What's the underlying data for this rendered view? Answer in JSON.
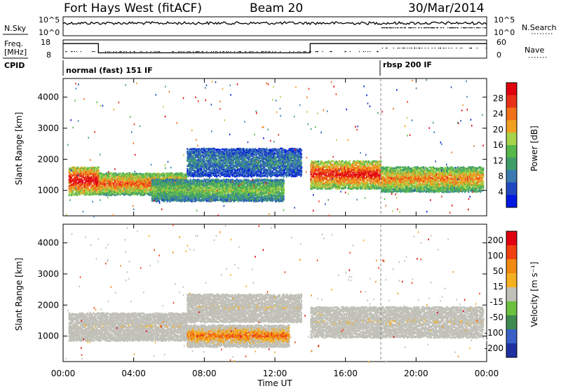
{
  "header": {
    "title": "Fort Hays West (fitACF)",
    "beam": "Beam 20",
    "date": "30/Mar/2014"
  },
  "top_panels": {
    "nsky_label": "N.Sky",
    "nsearch_label": "N.Search",
    "nsky_ticks": [
      "10^5",
      "10^0"
    ],
    "nsearch_ticks": [
      "10^5",
      "10^0"
    ],
    "freq_label_1": "Freq.",
    "freq_label_2": "[MHz]",
    "freq_ticks": [
      "18",
      "8"
    ],
    "nave_label": "Nave",
    "nave_ticks": [
      "60",
      "0"
    ],
    "cpid_label": "CPID",
    "cpid_segments": [
      {
        "label": "normal (fast) 151 IF",
        "start_hour": 0,
        "end_hour": 18
      },
      {
        "label": "rbsp 200 IF",
        "start_hour": 18,
        "end_hour": 24
      }
    ],
    "freq_segments": [
      {
        "start_hour": 0,
        "end_hour": 2,
        "mhz": 17
      },
      {
        "start_hour": 2,
        "end_hour": 14,
        "mhz": 11
      },
      {
        "start_hour": 14,
        "end_hour": 24,
        "mhz": 17
      }
    ]
  },
  "chart_data": [
    {
      "type": "heatmap",
      "name": "power",
      "ylabel": "Slant Range [km]",
      "ylim": [
        180,
        4600
      ],
      "yticks": [
        1000,
        2000,
        3000,
        4000
      ],
      "xlim": [
        0,
        24
      ],
      "colorbar_label": "Power [dB]",
      "colorbar_ticks": [
        "4",
        "8",
        "12",
        "16",
        "20",
        "24",
        "28"
      ],
      "colorbar_colors": [
        "#0018e0",
        "#2048c0",
        "#3a7ab0",
        "#3f9d6a",
        "#56b84a",
        "#a8d24a",
        "#f0a020",
        "#f07018",
        "#e83018",
        "#e00010"
      ],
      "bands": [
        {
          "start_hour": 0.3,
          "end_hour": 2.0,
          "low_km": 900,
          "high_km": 1800,
          "level": 0.85
        },
        {
          "start_hour": 2.0,
          "end_hour": 7.0,
          "low_km": 900,
          "high_km": 1600,
          "level": 0.7
        },
        {
          "start_hour": 5.0,
          "end_hour": 12.5,
          "low_km": 700,
          "high_km": 1400,
          "level": 0.45
        },
        {
          "start_hour": 7.0,
          "end_hour": 13.5,
          "low_km": 1500,
          "high_km": 2400,
          "level": 0.25
        },
        {
          "start_hour": 14.0,
          "end_hour": 18.0,
          "low_km": 1100,
          "high_km": 2000,
          "level": 0.8
        },
        {
          "start_hour": 18.0,
          "end_hour": 23.8,
          "low_km": 1000,
          "high_km": 1800,
          "level": 0.65
        }
      ]
    },
    {
      "type": "heatmap",
      "name": "velocity",
      "ylabel": "Slant Range [km]",
      "ylim": [
        180,
        4600
      ],
      "yticks": [
        1000,
        2000,
        3000,
        4000
      ],
      "xlim": [
        0,
        24
      ],
      "xticks": [
        "00:00",
        "04:00",
        "08:00",
        "12:00",
        "16:00",
        "20:00",
        "00:00"
      ],
      "xlabel": "Time UT",
      "colorbar_label": "Velocity [m s⁻¹]",
      "colorbar_ticks": [
        "200",
        "100",
        "50",
        "15",
        "-15",
        "-50",
        "-100",
        "-200"
      ],
      "colorbar_colors": [
        "#2030a0",
        "#3a60c8",
        "#3e8a50",
        "#6cc040",
        "#c0c0b8",
        "#f5b020",
        "#f08a10",
        "#f04010",
        "#e00010"
      ],
      "bands": [
        {
          "start_hour": 0.3,
          "end_hour": 7.0,
          "low_km": 900,
          "high_km": 1800,
          "level": 0.45
        },
        {
          "start_hour": 7.0,
          "end_hour": 12.8,
          "low_km": 700,
          "high_km": 1400,
          "level": 0.7
        },
        {
          "start_hour": 7.0,
          "end_hour": 13.5,
          "low_km": 1500,
          "high_km": 2400,
          "level": 0.45
        },
        {
          "start_hour": 14.0,
          "end_hour": 23.8,
          "low_km": 1000,
          "high_km": 2000,
          "level": 0.45
        }
      ]
    }
  ]
}
